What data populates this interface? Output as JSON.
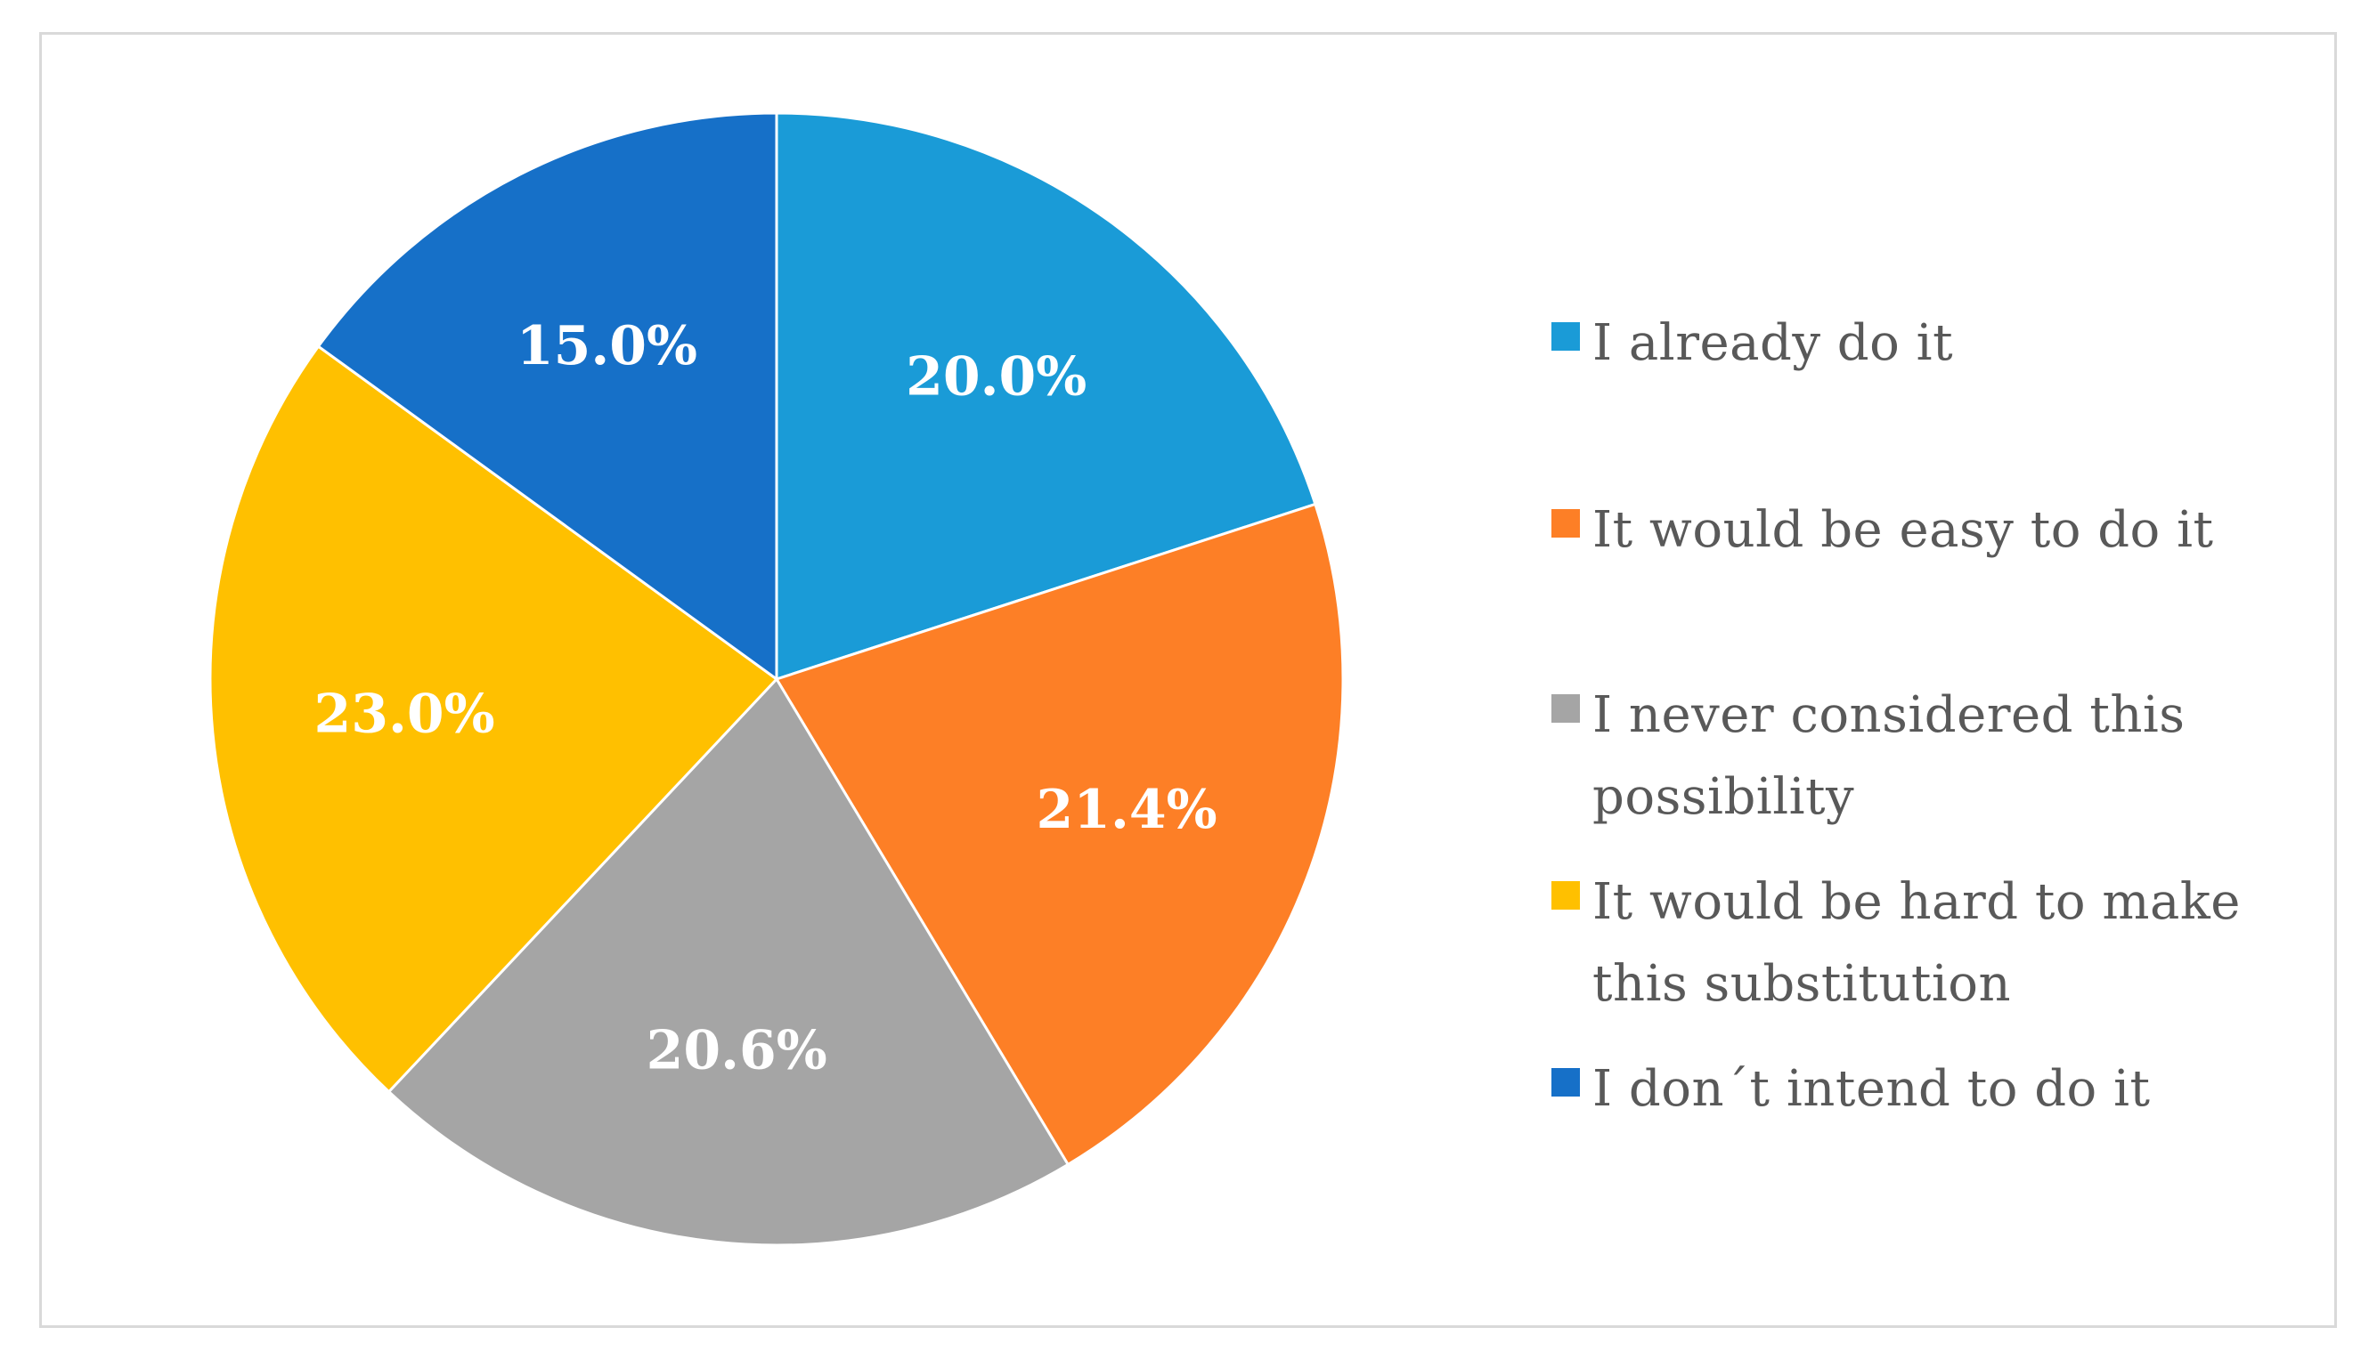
{
  "chart_data": {
    "type": "pie",
    "categories": [
      "I already do it",
      "It would be easy to do it",
      "I never considered this possibility",
      "It would be hard to make this substitution",
      "I don´t intend to do it"
    ],
    "values": [
      20.0,
      21.4,
      20.6,
      23.0,
      15.0
    ],
    "value_labels": [
      "20.0%",
      "21.4%",
      "20.6%",
      "23.0%",
      "15.0%"
    ],
    "colors": [
      "#1a9bd7",
      "#fd7f26",
      "#a5a5a5",
      "#ffc000",
      "#1670c8"
    ],
    "legend_position": "right",
    "start_angle": "top",
    "direction": "clockwise"
  },
  "legend": {
    "items": [
      {
        "label": "I already do it",
        "color": "#1a9bd7"
      },
      {
        "label": "It would be easy to do it",
        "color": "#fd7f26"
      },
      {
        "label": "I never considered this possibility",
        "color": "#a5a5a5"
      },
      {
        "label": "It would be hard to make this substitution",
        "color": "#ffc000"
      },
      {
        "label": "I don´t intend to do it",
        "color": "#1670c8"
      }
    ]
  }
}
